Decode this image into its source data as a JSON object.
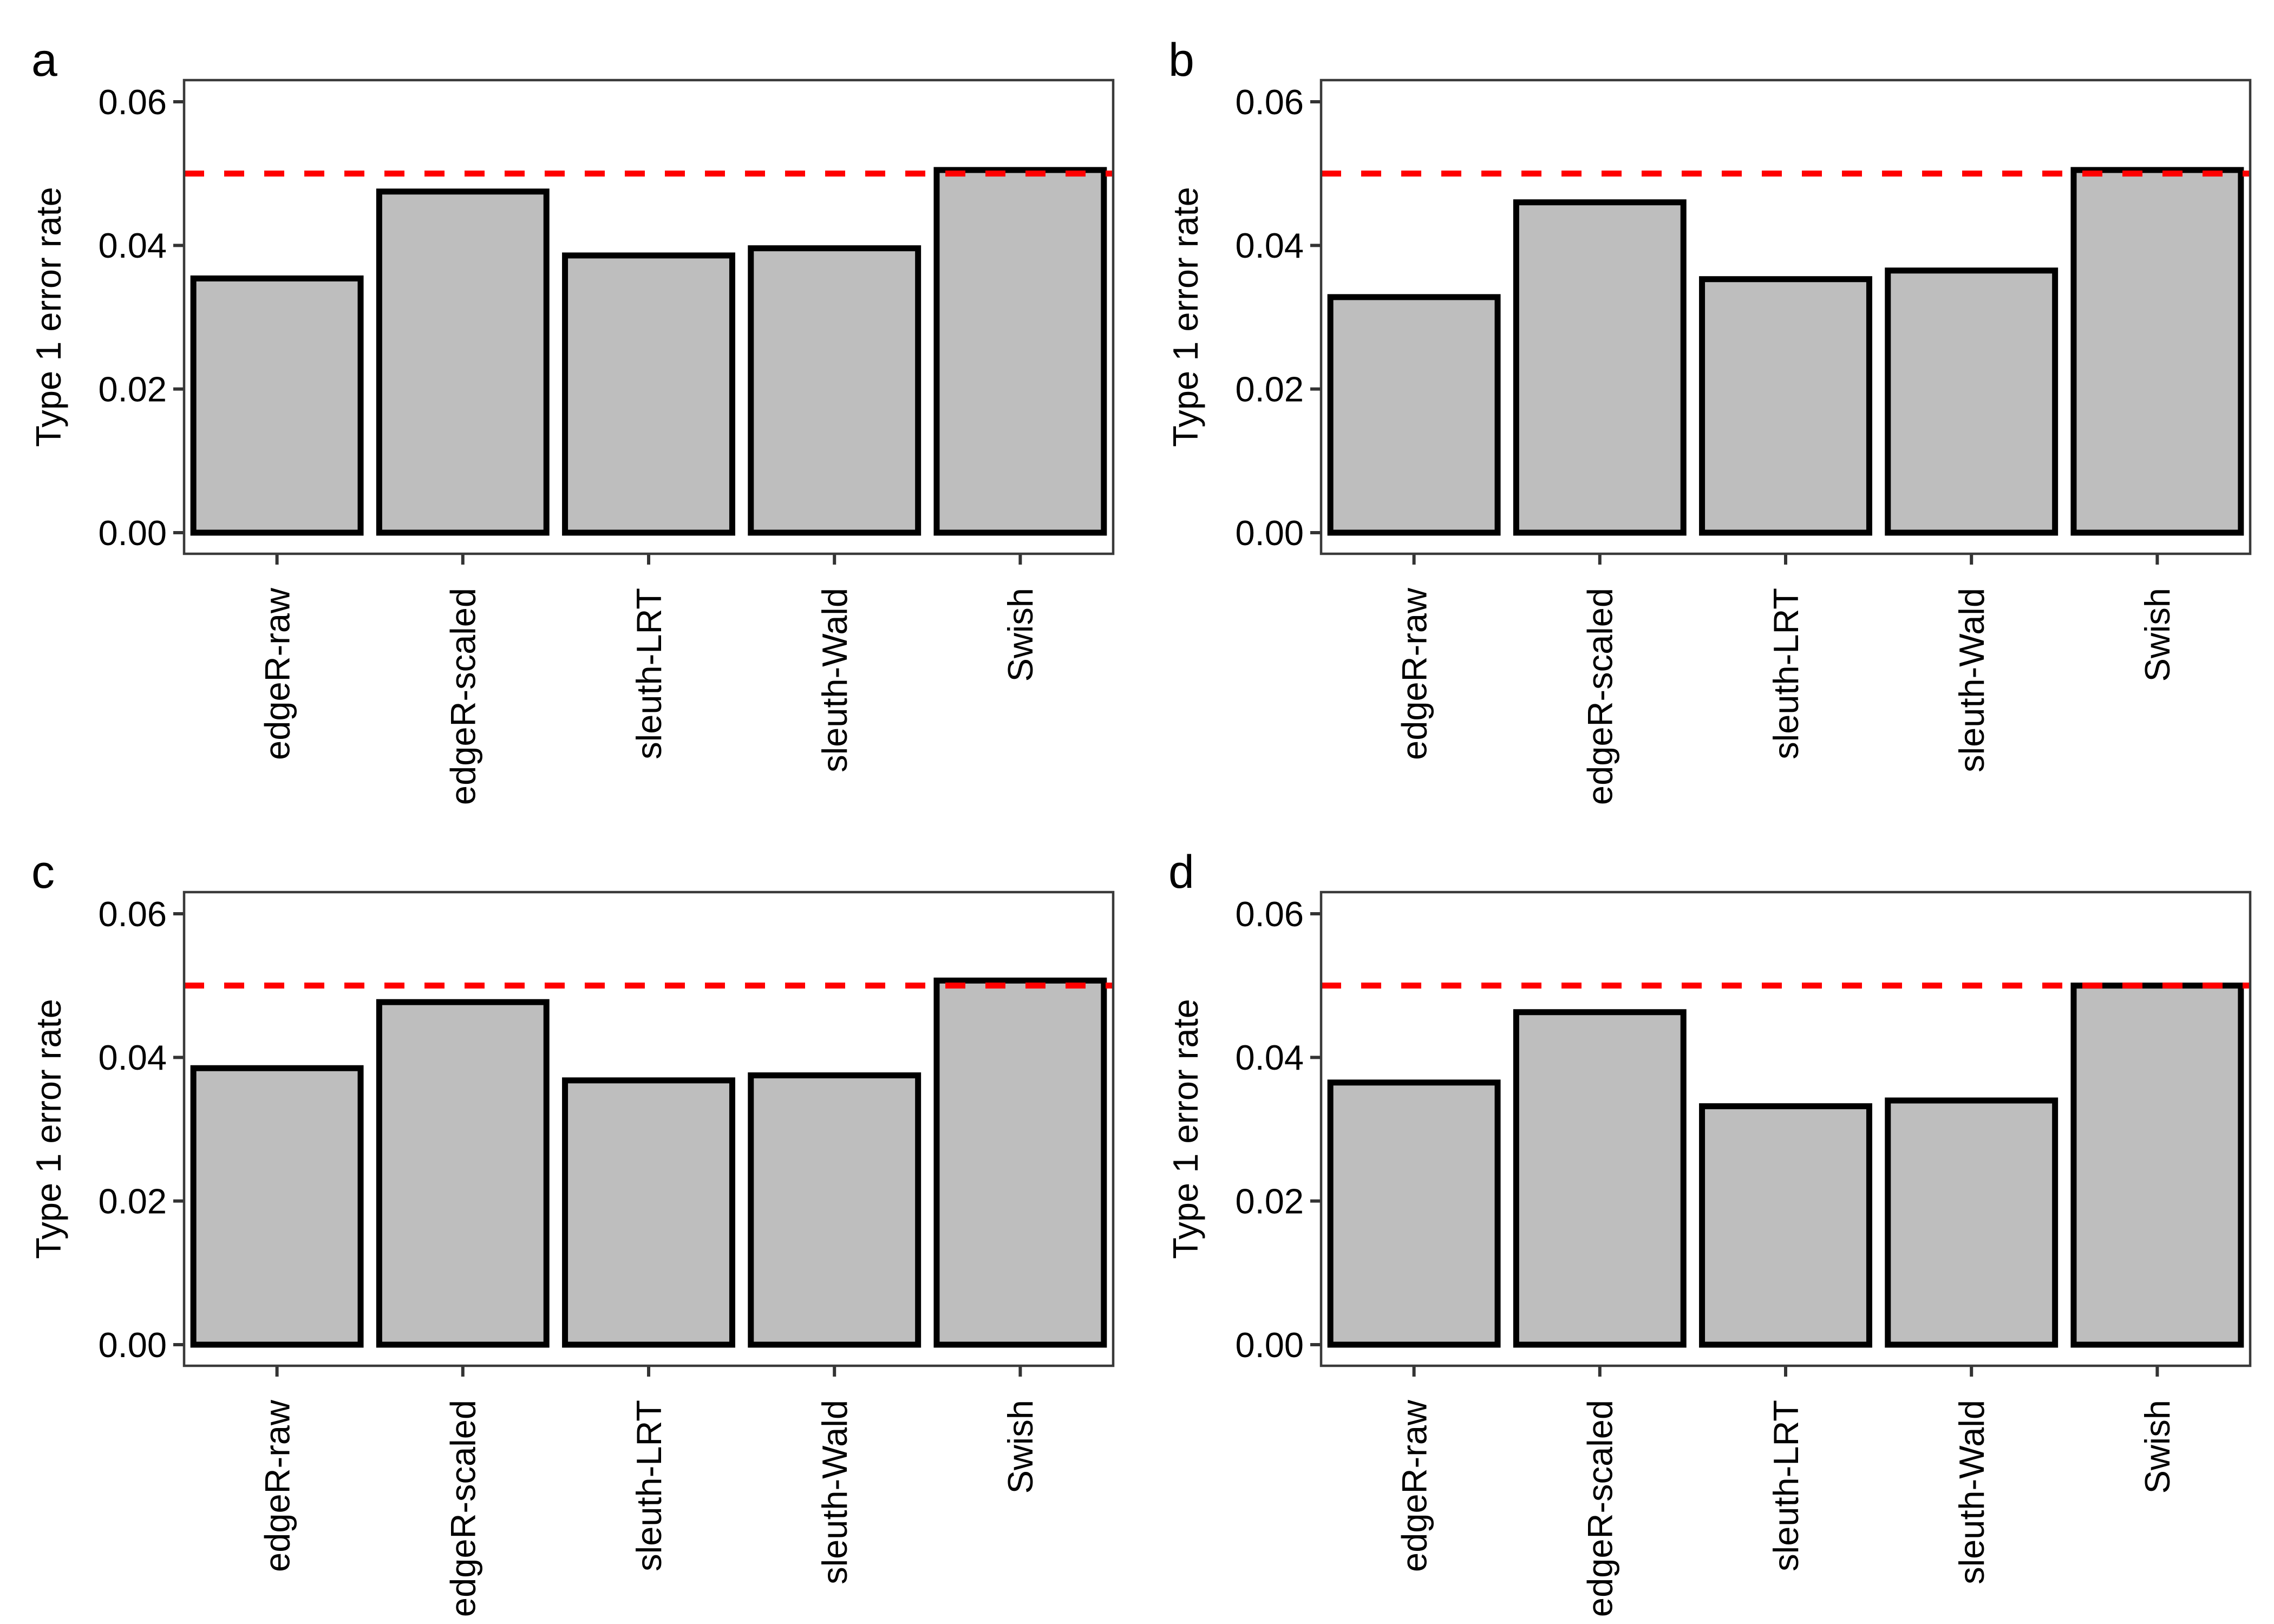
{
  "figure": {
    "background": "#FFFFFF",
    "colors": {
      "bar_fill": "#BEBEBE",
      "bar_stroke": "#000000",
      "reference_line": "#FF0000",
      "panel_border": "#3A3A3A",
      "tick": "#333333",
      "text": "#000000"
    }
  },
  "chart_data": [
    {
      "type": "bar",
      "panel_label": "a",
      "title": "",
      "xlabel": "",
      "ylabel": "Type 1 error rate",
      "categories": [
        "edgeR-raw",
        "edgeR-scaled",
        "sleuth-LRT",
        "sleuth-Wald",
        "Swish"
      ],
      "values": [
        0.0354,
        0.0475,
        0.0386,
        0.0396,
        0.0505
      ],
      "yticks": [
        0,
        0.02,
        0.04,
        0.06
      ],
      "ytick_labels": [
        "0.00",
        "0.02",
        "0.04",
        "0.06"
      ],
      "ylim": [
        0,
        0.063
      ],
      "grid": false,
      "legend": "none",
      "reference_line": {
        "y": 0.05,
        "style": "dashed",
        "color": "#FF0000"
      }
    },
    {
      "type": "bar",
      "panel_label": "b",
      "title": "",
      "xlabel": "",
      "ylabel": "Type 1 error rate",
      "categories": [
        "edgeR-raw",
        "edgeR-scaled",
        "sleuth-LRT",
        "sleuth-Wald",
        "Swish"
      ],
      "values": [
        0.0328,
        0.046,
        0.0353,
        0.0365,
        0.0505
      ],
      "yticks": [
        0,
        0.02,
        0.04,
        0.06
      ],
      "ytick_labels": [
        "0.00",
        "0.02",
        "0.04",
        "0.06"
      ],
      "ylim": [
        0,
        0.063
      ],
      "grid": false,
      "legend": "none",
      "reference_line": {
        "y": 0.05,
        "style": "dashed",
        "color": "#FF0000"
      }
    },
    {
      "type": "bar",
      "panel_label": "c",
      "title": "",
      "xlabel": "",
      "ylabel": "Type 1 error rate",
      "categories": [
        "edgeR-raw",
        "edgeR-scaled",
        "sleuth-LRT",
        "sleuth-Wald",
        "Swish"
      ],
      "values": [
        0.0385,
        0.0477,
        0.0368,
        0.0375,
        0.0507
      ],
      "yticks": [
        0,
        0.02,
        0.04,
        0.06
      ],
      "ytick_labels": [
        "0.00",
        "0.02",
        "0.04",
        "0.06"
      ],
      "ylim": [
        0,
        0.063
      ],
      "grid": false,
      "legend": "none",
      "reference_line": {
        "y": 0.05,
        "style": "dashed",
        "color": "#FF0000"
      }
    },
    {
      "type": "bar",
      "panel_label": "d",
      "title": "",
      "xlabel": "",
      "ylabel": "Type 1 error rate",
      "categories": [
        "edgeR-raw",
        "edgeR-scaled",
        "sleuth-LRT",
        "sleuth-Wald",
        "Swish"
      ],
      "values": [
        0.0365,
        0.0463,
        0.0332,
        0.034,
        0.05
      ],
      "yticks": [
        0,
        0.02,
        0.04,
        0.06
      ],
      "ytick_labels": [
        "0.00",
        "0.02",
        "0.04",
        "0.06"
      ],
      "ylim": [
        0,
        0.063
      ],
      "grid": false,
      "legend": "none",
      "reference_line": {
        "y": 0.05,
        "style": "dashed",
        "color": "#FF0000"
      }
    }
  ]
}
